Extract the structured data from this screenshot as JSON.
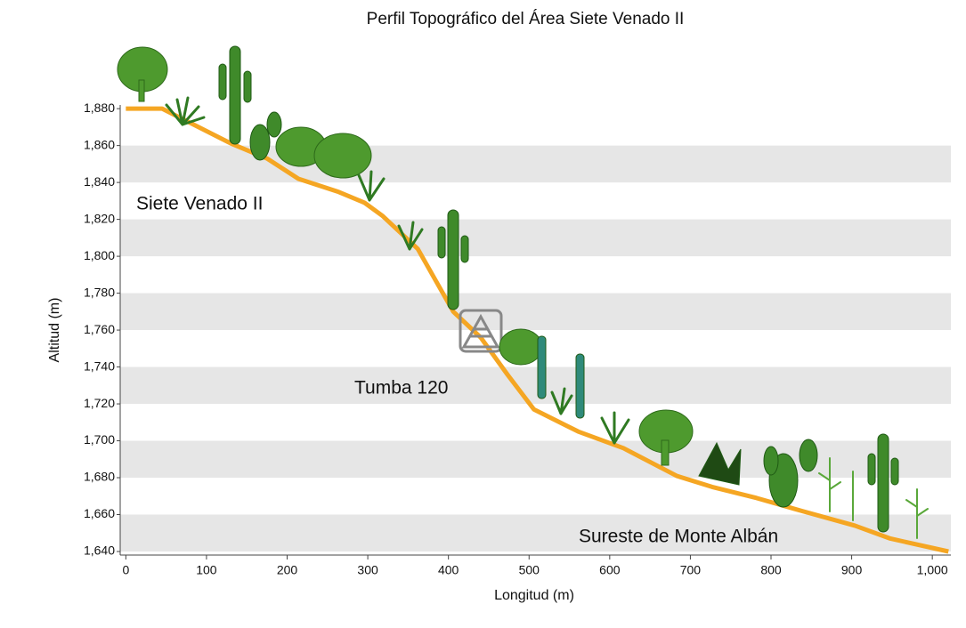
{
  "chart_data": {
    "type": "line",
    "title": "Perfil Topográfico del Área Siete Venado II",
    "xlabel": "Longitud (m)",
    "ylabel": "Altitud (m)",
    "x": [
      0,
      45,
      131,
      175,
      214,
      263,
      296,
      318,
      362,
      384,
      406,
      440,
      473,
      506,
      561,
      617,
      683,
      727,
      782,
      838,
      904,
      948,
      1020
    ],
    "values": [
      1880,
      1880,
      1861,
      1853,
      1842,
      1835,
      1829,
      1822,
      1804,
      1787,
      1770,
      1756,
      1736,
      1717,
      1705,
      1696,
      1681,
      1675,
      1669,
      1662,
      1654,
      1647,
      1640
    ],
    "color": "#f5a623",
    "xlim": [
      -7,
      1023
    ],
    "ylim": [
      1640,
      1882
    ],
    "xticks": [
      0,
      100,
      200,
      300,
      400,
      500,
      600,
      700,
      800,
      900,
      {
        "value": 1000,
        "label": "1,000"
      }
    ],
    "yticks": [
      {
        "value": 1640,
        "label": "1,640"
      },
      {
        "value": 1660,
        "label": "1,660"
      },
      {
        "value": 1680,
        "label": "1,680"
      },
      {
        "value": 1700,
        "label": "1,700"
      },
      {
        "value": 1720,
        "label": "1,720"
      },
      {
        "value": 1740,
        "label": "1,740"
      },
      {
        "value": 1760,
        "label": "1,760"
      },
      {
        "value": 1780,
        "label": "1,780"
      },
      {
        "value": 1800,
        "label": "1,800"
      },
      {
        "value": 1820,
        "label": "1,820"
      },
      {
        "value": 1840,
        "label": "1,840"
      },
      {
        "value": 1860,
        "label": "1,860"
      },
      {
        "value": 1880,
        "label": "1,880"
      }
    ],
    "grid": "bands",
    "band_color": "#e6e6e6",
    "annotations": [
      "Siete Venado II",
      "Tumba 120",
      "Sureste de Monte Albán"
    ]
  }
}
